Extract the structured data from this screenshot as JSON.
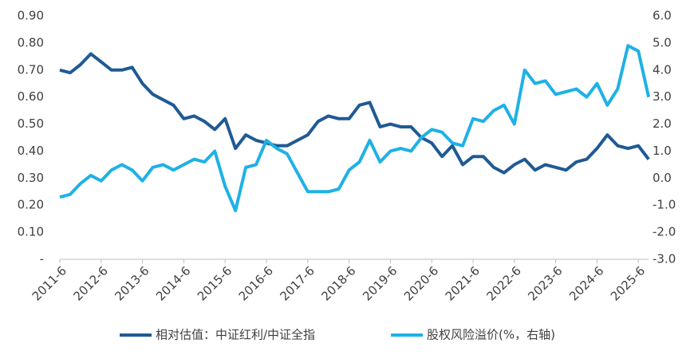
{
  "chart_data": {
    "type": "line",
    "x": [
      "2011-6",
      null,
      null,
      null,
      "2012-6",
      null,
      null,
      null,
      "2013-6",
      null,
      null,
      null,
      "2014-6",
      null,
      null,
      null,
      "2015-6",
      null,
      null,
      null,
      "2016-6",
      null,
      null,
      null,
      "2017-6",
      null,
      null,
      null,
      "2018-6",
      null,
      null,
      null,
      "2019-6",
      null,
      null,
      null,
      "2020-6",
      null,
      null,
      null,
      "2021-6",
      null,
      null,
      null,
      "2022-6",
      null,
      null,
      null,
      "2023-6",
      null,
      null,
      null,
      "2024-6",
      null,
      null,
      null,
      "2025-6",
      null
    ],
    "series": [
      {
        "name": "相对估值：中证红利/中证全指",
        "color": "#1f5a94",
        "axis": "y",
        "values": [
          0.7,
          0.69,
          0.72,
          0.76,
          0.73,
          0.7,
          0.7,
          0.71,
          0.65,
          0.61,
          0.59,
          0.57,
          0.52,
          0.53,
          0.51,
          0.48,
          0.52,
          0.41,
          0.46,
          0.44,
          0.43,
          0.42,
          0.42,
          0.44,
          0.46,
          0.51,
          0.53,
          0.52,
          0.52,
          0.57,
          0.58,
          0.49,
          0.5,
          0.49,
          0.49,
          0.45,
          0.43,
          0.38,
          0.42,
          0.35,
          0.38,
          0.38,
          0.34,
          0.32,
          0.35,
          0.37,
          0.33,
          0.35,
          0.34,
          0.33,
          0.36,
          0.37,
          0.41,
          0.46,
          0.42,
          0.41,
          0.42,
          0.37
        ]
      },
      {
        "name": "股权风险溢价(%，右轴)",
        "color": "#1fb1e6",
        "axis": "y2",
        "values": [
          -0.7,
          -0.6,
          -0.2,
          0.1,
          -0.1,
          0.3,
          0.5,
          0.3,
          -0.1,
          0.4,
          0.5,
          0.3,
          0.5,
          0.7,
          0.6,
          1.0,
          -0.3,
          -1.2,
          0.4,
          0.5,
          1.4,
          1.1,
          0.9,
          0.2,
          -0.5,
          -0.5,
          -0.5,
          -0.4,
          0.3,
          0.6,
          1.4,
          0.6,
          1.0,
          1.1,
          1.0,
          1.5,
          1.8,
          1.7,
          1.3,
          1.2,
          2.2,
          2.1,
          2.5,
          2.7,
          2.0,
          4.0,
          3.5,
          3.6,
          3.1,
          3.2,
          3.3,
          3.0,
          3.5,
          2.7,
          3.3,
          4.9,
          4.7,
          3.0
        ]
      }
    ],
    "ylim": [
      0,
      0.9
    ],
    "yticks": [
      {
        "value": 0,
        "label": "-"
      },
      {
        "value": 0.1,
        "label": "0.10"
      },
      {
        "value": 0.2,
        "label": "0.20"
      },
      {
        "value": 0.3,
        "label": "0.30"
      },
      {
        "value": 0.4,
        "label": "0.40"
      },
      {
        "value": 0.5,
        "label": "0.50"
      },
      {
        "value": 0.6,
        "label": "0.60"
      },
      {
        "value": 0.7,
        "label": "0.70"
      },
      {
        "value": 0.8,
        "label": "0.80"
      },
      {
        "value": 0.9,
        "label": "0.90"
      }
    ],
    "y2lim": [
      -3,
      6
    ],
    "y2ticks": [
      {
        "value": -3,
        "label": "-3.0"
      },
      {
        "value": -2,
        "label": "-2.0"
      },
      {
        "value": -1,
        "label": "-1.0"
      },
      {
        "value": 0,
        "label": "0.0"
      },
      {
        "value": 1,
        "label": "1.0"
      },
      {
        "value": 2,
        "label": "2.0"
      },
      {
        "value": 3,
        "label": "3.0"
      },
      {
        "value": 4,
        "label": "4.0"
      },
      {
        "value": 5,
        "label": "5.0"
      },
      {
        "value": 6,
        "label": "6.0"
      }
    ],
    "grid": false
  }
}
